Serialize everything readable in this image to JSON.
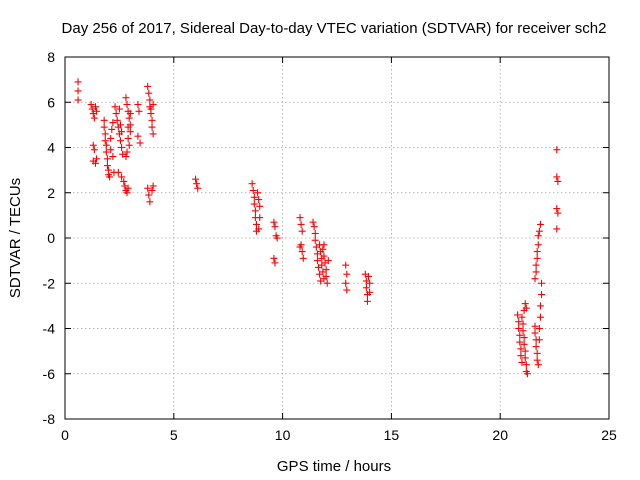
{
  "chart_data": {
    "type": "scatter",
    "title": "Day 256 of 2017, Sidereal Day-to-day VTEC variation (SDTVAR) for receiver sch2",
    "xlabel": "GPS time / hours",
    "ylabel": "SDTVAR / TECUs",
    "xlim": [
      0,
      25
    ],
    "ylim": [
      -8,
      8
    ],
    "xticks": [
      0,
      5,
      10,
      15,
      20,
      25
    ],
    "yticks": [
      -8,
      -6,
      -4,
      -2,
      0,
      2,
      4,
      6,
      8
    ],
    "xtick_labels": [
      "0",
      "5",
      "10",
      "15",
      "20",
      "25"
    ],
    "ytick_labels": [
      "-8",
      "-6",
      "-4",
      "-2",
      "0",
      "2",
      "4",
      "6",
      "8"
    ],
    "grid": true,
    "marker": "plus",
    "color": "#ff0000",
    "series": [
      {
        "name": "sch2",
        "points": [
          [
            0.6,
            6.9
          ],
          [
            0.6,
            6.5
          ],
          [
            0.6,
            6.1
          ],
          [
            1.2,
            5.9
          ],
          [
            1.25,
            5.7
          ],
          [
            1.3,
            5.5
          ],
          [
            1.35,
            5.3
          ],
          [
            1.4,
            5.8
          ],
          [
            1.45,
            5.6
          ],
          [
            1.3,
            4.1
          ],
          [
            1.35,
            3.9
          ],
          [
            1.3,
            3.4
          ],
          [
            1.4,
            3.3
          ],
          [
            1.45,
            3.5
          ],
          [
            1.8,
            5.2
          ],
          [
            1.8,
            4.9
          ],
          [
            1.85,
            4.6
          ],
          [
            1.85,
            4.3
          ],
          [
            1.9,
            4.1
          ],
          [
            1.9,
            3.8
          ],
          [
            1.95,
            3.5
          ],
          [
            1.95,
            3.2
          ],
          [
            2.0,
            3.0
          ],
          [
            2.0,
            2.8
          ],
          [
            2.05,
            2.7
          ],
          [
            2.1,
            3.9
          ],
          [
            2.1,
            4.4
          ],
          [
            2.15,
            4.8
          ],
          [
            2.2,
            5.1
          ],
          [
            2.2,
            3.6
          ],
          [
            2.25,
            2.9
          ],
          [
            2.3,
            5.8
          ],
          [
            2.35,
            5.5
          ],
          [
            2.4,
            5.2
          ],
          [
            2.45,
            4.9
          ],
          [
            2.5,
            4.6
          ],
          [
            2.55,
            4.3
          ],
          [
            2.6,
            4.0
          ],
          [
            2.65,
            3.7
          ],
          [
            2.5,
            5.7
          ],
          [
            2.55,
            5.0
          ],
          [
            2.6,
            4.7
          ],
          [
            2.45,
            2.9
          ],
          [
            2.6,
            2.7
          ],
          [
            2.7,
            2.5
          ],
          [
            2.75,
            2.3
          ],
          [
            2.8,
            2.1
          ],
          [
            2.85,
            2.0
          ],
          [
            2.9,
            2.2
          ],
          [
            2.8,
            6.2
          ],
          [
            2.85,
            5.9
          ],
          [
            2.9,
            5.6
          ],
          [
            2.95,
            5.3
          ],
          [
            3.0,
            5.0
          ],
          [
            3.0,
            4.7
          ],
          [
            2.9,
            4.4
          ],
          [
            2.95,
            4.1
          ],
          [
            2.85,
            3.8
          ],
          [
            2.8,
            3.6
          ],
          [
            2.9,
            4.9
          ],
          [
            3.0,
            5.5
          ],
          [
            3.35,
            5.9
          ],
          [
            3.4,
            5.6
          ],
          [
            3.35,
            4.5
          ],
          [
            3.45,
            4.2
          ],
          [
            3.8,
            6.7
          ],
          [
            3.85,
            6.4
          ],
          [
            3.9,
            6.1
          ],
          [
            3.9,
            5.8
          ],
          [
            3.95,
            5.5
          ],
          [
            4.0,
            5.2
          ],
          [
            4.0,
            4.9
          ],
          [
            4.05,
            4.6
          ],
          [
            3.95,
            5.7
          ],
          [
            4.05,
            5.9
          ],
          [
            3.8,
            2.2
          ],
          [
            3.85,
            1.9
          ],
          [
            3.9,
            1.6
          ],
          [
            4.0,
            2.1
          ],
          [
            4.05,
            2.3
          ],
          [
            6.0,
            2.6
          ],
          [
            6.05,
            2.4
          ],
          [
            6.1,
            2.2
          ],
          [
            8.6,
            2.4
          ],
          [
            8.65,
            2.1
          ],
          [
            8.7,
            1.8
          ],
          [
            8.7,
            1.5
          ],
          [
            8.75,
            1.2
          ],
          [
            8.75,
            0.9
          ],
          [
            8.8,
            0.6
          ],
          [
            8.8,
            0.3
          ],
          [
            8.85,
            2.0
          ],
          [
            8.9,
            1.7
          ],
          [
            8.95,
            1.4
          ],
          [
            8.95,
            0.9
          ],
          [
            8.9,
            0.4
          ],
          [
            9.6,
            0.7
          ],
          [
            9.65,
            0.5
          ],
          [
            9.7,
            0.1
          ],
          [
            9.75,
            0.0
          ],
          [
            9.6,
            -0.9
          ],
          [
            9.65,
            -1.1
          ],
          [
            10.8,
            0.9
          ],
          [
            10.85,
            0.6
          ],
          [
            10.9,
            0.3
          ],
          [
            10.85,
            -0.3
          ],
          [
            10.9,
            -0.6
          ],
          [
            10.95,
            -0.9
          ],
          [
            10.8,
            -0.4
          ],
          [
            11.4,
            0.7
          ],
          [
            11.45,
            0.5
          ],
          [
            11.5,
            0.2
          ],
          [
            11.5,
            -0.1
          ],
          [
            11.55,
            -0.4
          ],
          [
            11.6,
            -0.7
          ],
          [
            11.6,
            -1.0
          ],
          [
            11.65,
            -1.3
          ],
          [
            11.7,
            -1.6
          ],
          [
            11.75,
            -1.9
          ],
          [
            11.7,
            -0.3
          ],
          [
            11.75,
            -0.6
          ],
          [
            11.8,
            -0.9
          ],
          [
            11.8,
            -1.2
          ],
          [
            11.85,
            -1.5
          ],
          [
            11.9,
            -1.8
          ],
          [
            11.85,
            -0.5
          ],
          [
            11.9,
            -0.8
          ],
          [
            11.95,
            -1.1
          ],
          [
            12.0,
            -1.4
          ],
          [
            12.0,
            -1.7
          ],
          [
            12.05,
            -2.0
          ],
          [
            12.1,
            -1.0
          ],
          [
            11.9,
            -0.3
          ],
          [
            12.9,
            -1.2
          ],
          [
            12.95,
            -1.6
          ],
          [
            12.9,
            -2.0
          ],
          [
            12.95,
            -2.3
          ],
          [
            13.8,
            -1.6
          ],
          [
            13.85,
            -1.9
          ],
          [
            13.85,
            -2.2
          ],
          [
            13.9,
            -2.5
          ],
          [
            13.9,
            -2.8
          ],
          [
            13.95,
            -1.7
          ],
          [
            14.0,
            -2.0
          ],
          [
            14.0,
            -2.4
          ],
          [
            20.8,
            -3.4
          ],
          [
            20.85,
            -3.7
          ],
          [
            20.85,
            -4.0
          ],
          [
            20.9,
            -4.3
          ],
          [
            20.9,
            -4.6
          ],
          [
            20.95,
            -4.9
          ],
          [
            20.95,
            -5.2
          ],
          [
            21.0,
            -5.5
          ],
          [
            21.0,
            -3.5
          ],
          [
            21.05,
            -3.8
          ],
          [
            21.05,
            -4.1
          ],
          [
            21.1,
            -4.4
          ],
          [
            21.1,
            -4.7
          ],
          [
            21.15,
            -5.0
          ],
          [
            21.15,
            -5.3
          ],
          [
            21.2,
            -5.6
          ],
          [
            21.2,
            -5.9
          ],
          [
            21.25,
            -6.0
          ],
          [
            21.1,
            -3.2
          ],
          [
            21.15,
            -2.9
          ],
          [
            21.2,
            -3.1
          ],
          [
            21.6,
            -3.9
          ],
          [
            21.6,
            -4.2
          ],
          [
            21.65,
            -4.5
          ],
          [
            21.65,
            -4.8
          ],
          [
            21.7,
            -5.1
          ],
          [
            21.7,
            -5.4
          ],
          [
            21.75,
            -5.6
          ],
          [
            21.8,
            -4.5
          ],
          [
            21.8,
            -4.0
          ],
          [
            21.85,
            -3.5
          ],
          [
            21.85,
            -3.0
          ],
          [
            21.9,
            -2.5
          ],
          [
            21.9,
            -2.0
          ],
          [
            21.6,
            -1.8
          ],
          [
            21.65,
            -1.5
          ],
          [
            21.65,
            -1.2
          ],
          [
            21.7,
            -0.9
          ],
          [
            21.7,
            -0.6
          ],
          [
            21.75,
            -0.3
          ],
          [
            21.75,
            0.1
          ],
          [
            21.8,
            0.3
          ],
          [
            21.85,
            0.6
          ],
          [
            22.6,
            3.9
          ],
          [
            22.6,
            2.7
          ],
          [
            22.65,
            2.5
          ],
          [
            22.6,
            1.3
          ],
          [
            22.65,
            1.1
          ],
          [
            22.6,
            0.4
          ]
        ]
      }
    ]
  }
}
